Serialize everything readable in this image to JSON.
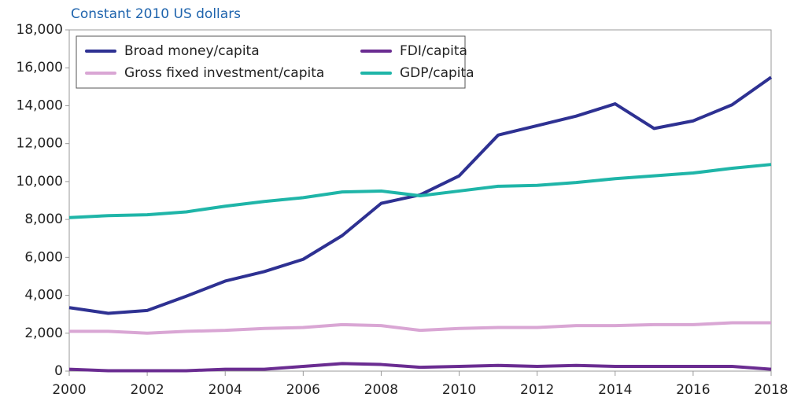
{
  "chart_data": {
    "type": "line",
    "title": "Constant 2010 US dollars",
    "x": [
      2000,
      2001,
      2002,
      2003,
      2004,
      2005,
      2006,
      2007,
      2008,
      2009,
      2010,
      2011,
      2012,
      2013,
      2014,
      2015,
      2016,
      2017,
      2018
    ],
    "series": [
      {
        "name": "Broad money/capita",
        "color": "#2e3192",
        "values": [
          3350,
          3050,
          3200,
          3950,
          4750,
          5250,
          5900,
          7150,
          8850,
          9300,
          10300,
          12450,
          12950,
          13450,
          14100,
          12800,
          13200,
          14050,
          15500
        ]
      },
      {
        "name": "FDI/capita",
        "color": "#6a2c91",
        "values": [
          100,
          20,
          20,
          20,
          100,
          100,
          250,
          400,
          350,
          200,
          250,
          300,
          250,
          300,
          250,
          250,
          250,
          250,
          100
        ]
      },
      {
        "name": "Gross fixed investment/capita",
        "color": "#d9a6d4",
        "values": [
          2100,
          2100,
          2000,
          2100,
          2150,
          2250,
          2300,
          2450,
          2400,
          2150,
          2250,
          2300,
          2300,
          2400,
          2400,
          2450,
          2450,
          2550,
          2550
        ]
      },
      {
        "name": "GDP/capita",
        "color": "#1fb5a8",
        "values": [
          8100,
          8200,
          8250,
          8400,
          8700,
          8950,
          9150,
          9450,
          9500,
          9250,
          9500,
          9750,
          9800,
          9950,
          10150,
          10300,
          10450,
          10700,
          10900
        ]
      }
    ],
    "xlim": [
      2000,
      2018
    ],
    "xticks": [
      2000,
      2002,
      2004,
      2006,
      2008,
      2010,
      2012,
      2014,
      2016,
      2018
    ],
    "ylim": [
      0,
      18000
    ],
    "yticks": [
      0,
      {
        "value": 2000,
        "label": "2,000"
      },
      {
        "value": 4000,
        "label": "4,000"
      },
      {
        "value": 6000,
        "label": "6,000"
      },
      {
        "value": 8000,
        "label": "8,000"
      },
      {
        "value": 10000,
        "label": "10,000"
      },
      {
        "value": 12000,
        "label": "12,000"
      },
      {
        "value": 14000,
        "label": "14,000"
      },
      {
        "value": 16000,
        "label": "16,000"
      },
      {
        "value": 18000,
        "label": "18,000"
      }
    ],
    "legend": "upper-left"
  }
}
